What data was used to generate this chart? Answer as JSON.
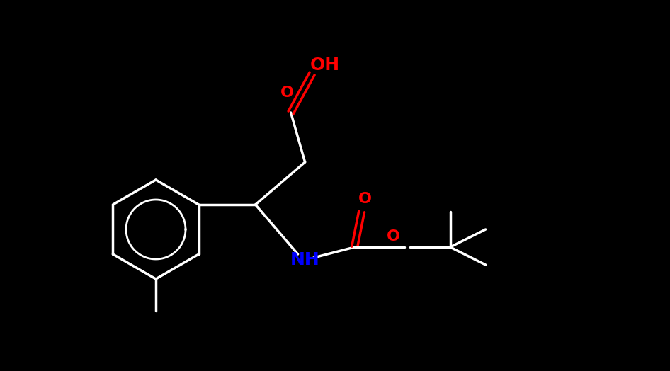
{
  "background_color": "#000000",
  "bond_color": "#ffffff",
  "atom_colors": {
    "O": "#ff0000",
    "N": "#0000ff",
    "C": "#ffffff",
    "H": "#ffffff"
  },
  "bond_width": 2.5,
  "fig_width": 9.46,
  "fig_height": 5.24,
  "dpi": 100
}
